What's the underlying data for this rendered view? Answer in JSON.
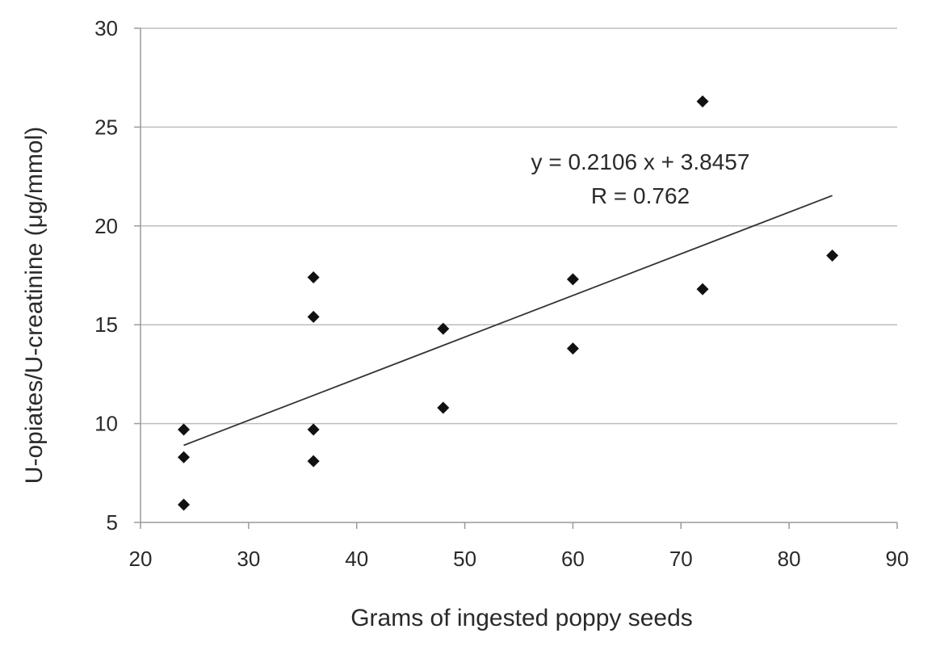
{
  "chart_data": {
    "type": "scatter",
    "xlabel": "Grams of ingested poppy seeds",
    "ylabel": "U-opiates/U-creatinine (μg/mmol)",
    "xlim": [
      20,
      90
    ],
    "ylim": [
      5,
      30
    ],
    "x_ticks": [
      20,
      30,
      40,
      50,
      60,
      70,
      80,
      90
    ],
    "y_ticks": [
      5,
      10,
      15,
      20,
      25,
      30
    ],
    "grid": "horizontal",
    "points": [
      {
        "x": 24,
        "y": 9.7
      },
      {
        "x": 24,
        "y": 8.3
      },
      {
        "x": 24,
        "y": 5.9
      },
      {
        "x": 36,
        "y": 17.4
      },
      {
        "x": 36,
        "y": 15.4
      },
      {
        "x": 36,
        "y": 9.7
      },
      {
        "x": 36,
        "y": 8.1
      },
      {
        "x": 48,
        "y": 14.8
      },
      {
        "x": 48,
        "y": 10.8
      },
      {
        "x": 60,
        "y": 17.3
      },
      {
        "x": 60,
        "y": 13.8
      },
      {
        "x": 72,
        "y": 26.3
      },
      {
        "x": 72,
        "y": 16.8
      },
      {
        "x": 84,
        "y": 18.5
      }
    ],
    "trendline": {
      "slope": 0.2106,
      "intercept": 3.8457,
      "x_start": 24,
      "x_end": 84
    },
    "annotations": [
      "y = 0.2106 x + 3.8457",
      "R = 0.762"
    ],
    "colors": {
      "marker": "#111111",
      "grid": "#bdbdbd",
      "axis": "#9a9a9a",
      "trendline": "#333333",
      "text": "#2a2a2a"
    }
  }
}
